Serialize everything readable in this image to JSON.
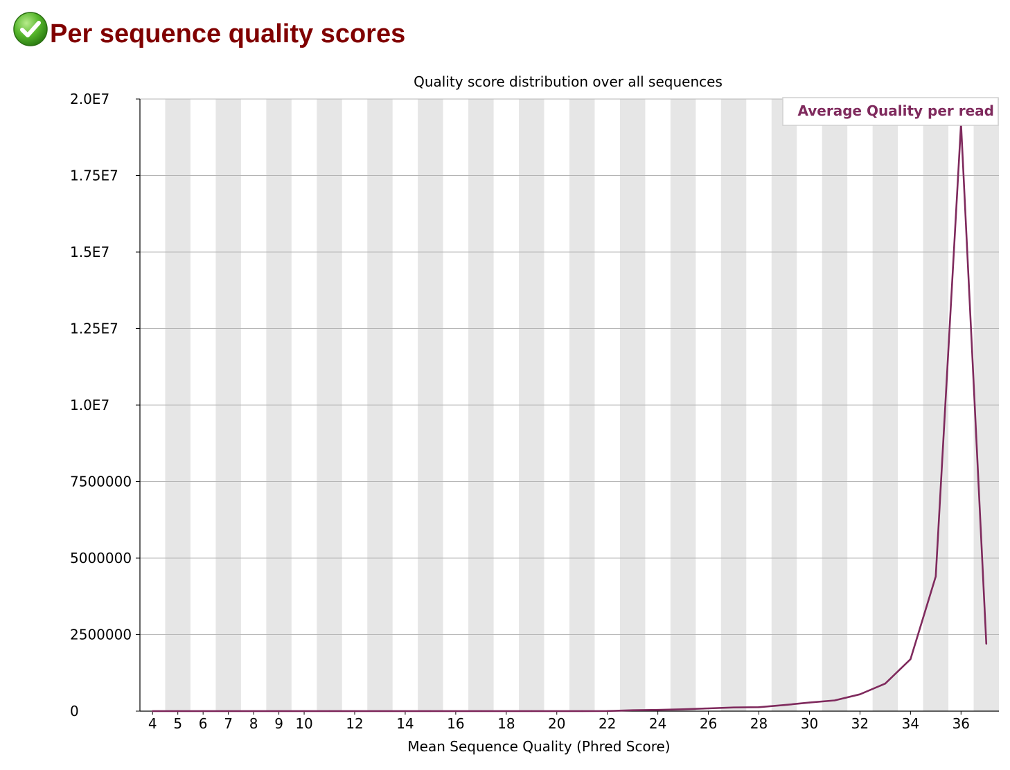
{
  "module": {
    "title": "Per sequence quality scores",
    "status": "pass",
    "status_icon": "check-circle-icon"
  },
  "colors": {
    "title": "#800000",
    "status": "#3a9a1e",
    "series": "#7f2a5d",
    "band": "#e6e6e6",
    "grid": "#b4b4b4"
  },
  "chart_data": {
    "type": "line",
    "title": "Quality score distribution over all sequences",
    "xlabel": "Mean Sequence Quality (Phred Score)",
    "ylabel": "",
    "xlim": [
      3.5,
      37.5
    ],
    "ylim": [
      0,
      20000000
    ],
    "x_tick_labels": [
      "4",
      "5",
      "6",
      "7",
      "8",
      "9",
      "10",
      "12",
      "14",
      "16",
      "18",
      "20",
      "22",
      "24",
      "26",
      "28",
      "30",
      "32",
      "34",
      "36"
    ],
    "y_tick_labels": [
      "0",
      "2500000",
      "5000000",
      "7500000",
      "1.0E7",
      "1.25E7",
      "1.5E7",
      "1.75E7",
      "2.0E7"
    ],
    "grid": true,
    "legend_position": "top-right",
    "series": [
      {
        "name": "Average Quality per read",
        "x": [
          4,
          5,
          6,
          7,
          8,
          9,
          10,
          11,
          12,
          13,
          14,
          15,
          16,
          17,
          18,
          19,
          20,
          21,
          22,
          23,
          24,
          25,
          26,
          27,
          28,
          29,
          30,
          31,
          32,
          33,
          34,
          35,
          36,
          37
        ],
        "values": [
          2000,
          2000,
          2000,
          2000,
          2000,
          2000,
          2000,
          2000,
          2000,
          2000,
          2000,
          2000,
          2000,
          2000,
          2000,
          2000,
          2000,
          2000,
          5000,
          30000,
          40000,
          60000,
          90000,
          120000,
          130000,
          200000,
          280000,
          350000,
          550000,
          900000,
          1700000,
          4400000,
          19200000,
          2200000
        ]
      }
    ]
  }
}
